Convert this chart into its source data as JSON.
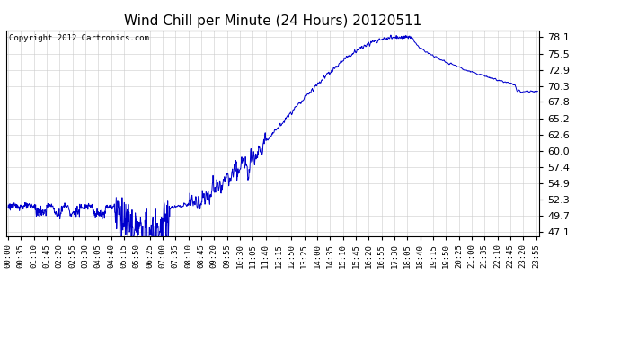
{
  "title": "Wind Chill per Minute (24 Hours) 20120511",
  "copyright_text": "Copyright 2012 Cartronics.com",
  "line_color": "#0000cc",
  "background_color": "#ffffff",
  "plot_bg_color": "#ffffff",
  "grid_color": "#cccccc",
  "y_ticks": [
    47.1,
    49.7,
    52.3,
    54.9,
    57.4,
    60.0,
    62.6,
    65.2,
    67.8,
    70.3,
    72.9,
    75.5,
    78.1
  ],
  "ylim": [
    46.5,
    79.2
  ],
  "x_labels": [
    "00:00",
    "00:35",
    "01:10",
    "01:45",
    "02:20",
    "02:55",
    "03:30",
    "04:05",
    "04:40",
    "05:15",
    "05:50",
    "06:25",
    "07:00",
    "07:35",
    "08:10",
    "08:45",
    "09:20",
    "09:55",
    "10:30",
    "11:05",
    "11:40",
    "12:15",
    "12:50",
    "13:25",
    "14:00",
    "14:35",
    "15:10",
    "15:45",
    "16:20",
    "16:55",
    "17:30",
    "18:05",
    "18:40",
    "19:15",
    "19:50",
    "20:25",
    "21:00",
    "21:35",
    "22:10",
    "22:45",
    "23:20",
    "23:55"
  ],
  "title_fontsize": 11,
  "label_fontsize": 6.5,
  "copyright_fontsize": 6.5,
  "ytick_fontsize": 8
}
